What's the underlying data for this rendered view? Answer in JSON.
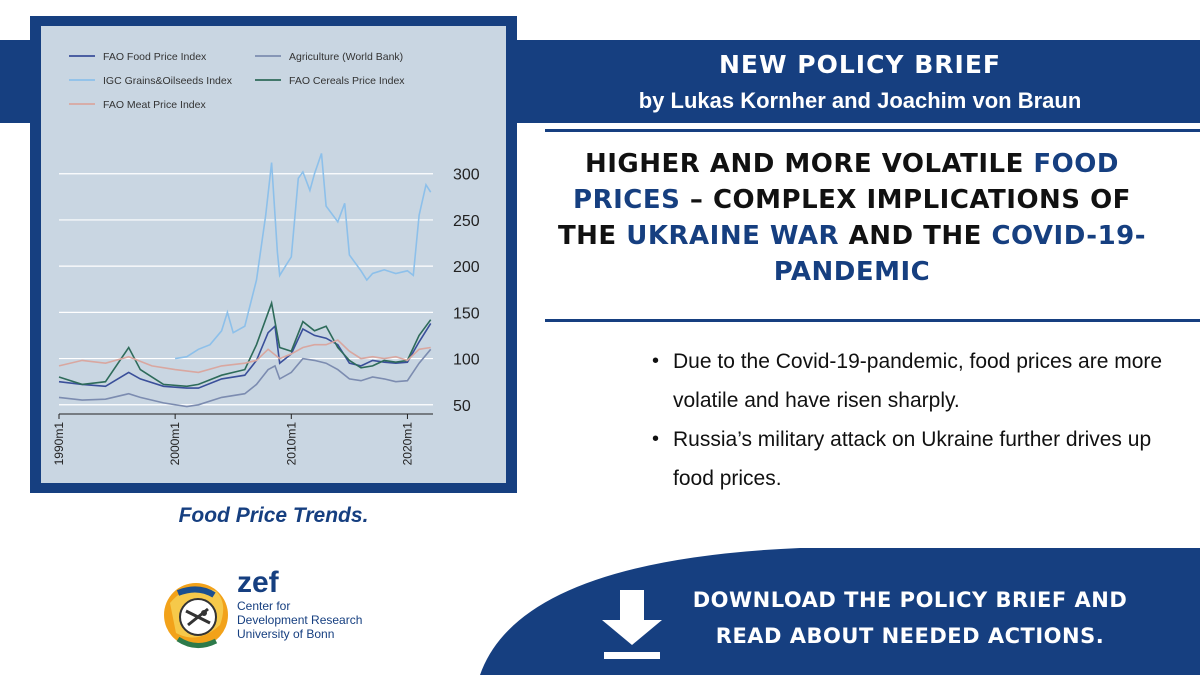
{
  "header": {
    "line1": "NEW POLICY BRIEF",
    "line2": "by Lukas Kornher and Joachim von Braun"
  },
  "title": {
    "parts": [
      "Higher and more volatile ",
      "food prices",
      " – complex implications of the ",
      "Ukraine War",
      " and the ",
      "Covid-19-pandemic"
    ]
  },
  "bullets": [
    "Due to the Covid-19-pandemic, food prices are more volatile and have risen sharply.",
    "Russia’s military attack on Ukraine further drives up food prices."
  ],
  "caption": "Food Price Trends.",
  "logo": {
    "word": "zef",
    "sub1": "Center for",
    "sub2": "Development Research",
    "sub3": "University of Bonn"
  },
  "cta": {
    "line1": "DOWNLOAD THE POLICY BRIEF AND",
    "line2": "READ ABOUT NEEDED ACTIONS.",
    "icon": "download-arrow-icon"
  },
  "colors": {
    "brand_blue": "#163f80",
    "chart_bg": "#c9d6e2",
    "title_highlight": "#163f80"
  },
  "chart_data": {
    "type": "line",
    "xlabel": "",
    "ylabel": "",
    "x_range": [
      1990,
      2022.2
    ],
    "ylim": [
      40,
      330
    ],
    "xticks": [
      {
        "value": 1990,
        "label": "1990m1"
      },
      {
        "value": 2000,
        "label": "2000m1"
      },
      {
        "value": 2010,
        "label": "2010m1"
      },
      {
        "value": 2020,
        "label": "2020m1"
      }
    ],
    "yticks": [
      50,
      100,
      150,
      200,
      250,
      300
    ],
    "grid": true,
    "legend_position": "top-left",
    "series": [
      {
        "name": "FAO Food Price Index",
        "color": "#3a4f9a",
        "points": [
          [
            1990,
            75
          ],
          [
            1992,
            72
          ],
          [
            1994,
            70
          ],
          [
            1996,
            85
          ],
          [
            1997,
            78
          ],
          [
            1999,
            70
          ],
          [
            2001,
            68
          ],
          [
            2002,
            68
          ],
          [
            2004,
            78
          ],
          [
            2006,
            82
          ],
          [
            2007,
            98
          ],
          [
            2008,
            128
          ],
          [
            2008.6,
            135
          ],
          [
            2009,
            95
          ],
          [
            2010,
            105
          ],
          [
            2011,
            132
          ],
          [
            2012,
            125
          ],
          [
            2013,
            122
          ],
          [
            2014,
            115
          ],
          [
            2015,
            95
          ],
          [
            2016,
            92
          ],
          [
            2017,
            98
          ],
          [
            2018,
            96
          ],
          [
            2019,
            95
          ],
          [
            2020,
            96
          ],
          [
            2021,
            118
          ],
          [
            2022,
            138
          ]
        ]
      },
      {
        "name": "Agriculture (World Bank)",
        "color": "#7c8cb0",
        "points": [
          [
            1990,
            58
          ],
          [
            1992,
            55
          ],
          [
            1994,
            56
          ],
          [
            1996,
            62
          ],
          [
            1997,
            58
          ],
          [
            1999,
            52
          ],
          [
            2001,
            48
          ],
          [
            2002,
            50
          ],
          [
            2004,
            58
          ],
          [
            2006,
            62
          ],
          [
            2007,
            72
          ],
          [
            2008,
            88
          ],
          [
            2008.6,
            92
          ],
          [
            2009,
            78
          ],
          [
            2010,
            85
          ],
          [
            2011,
            100
          ],
          [
            2012,
            98
          ],
          [
            2013,
            95
          ],
          [
            2014,
            88
          ],
          [
            2015,
            78
          ],
          [
            2016,
            76
          ],
          [
            2017,
            80
          ],
          [
            2018,
            78
          ],
          [
            2019,
            75
          ],
          [
            2020,
            76
          ],
          [
            2021,
            95
          ],
          [
            2022,
            110
          ]
        ]
      },
      {
        "name": "IGC Grains&Oilseeds Index",
        "color": "#8dc0ea",
        "points": [
          [
            2000,
            100
          ],
          [
            2001,
            102
          ],
          [
            2002,
            110
          ],
          [
            2003,
            115
          ],
          [
            2004,
            130
          ],
          [
            2004.5,
            150
          ],
          [
            2005,
            128
          ],
          [
            2006,
            135
          ],
          [
            2007,
            185
          ],
          [
            2007.8,
            255
          ],
          [
            2008.3,
            312
          ],
          [
            2008.8,
            215
          ],
          [
            2009,
            190
          ],
          [
            2009.5,
            200
          ],
          [
            2010,
            210
          ],
          [
            2010.6,
            295
          ],
          [
            2011,
            302
          ],
          [
            2011.6,
            282
          ],
          [
            2012,
            300
          ],
          [
            2012.6,
            322
          ],
          [
            2013,
            265
          ],
          [
            2014,
            248
          ],
          [
            2014.6,
            268
          ],
          [
            2015,
            212
          ],
          [
            2016,
            195
          ],
          [
            2016.5,
            185
          ],
          [
            2017,
            192
          ],
          [
            2018,
            196
          ],
          [
            2019,
            192
          ],
          [
            2020,
            195
          ],
          [
            2020.5,
            190
          ],
          [
            2021,
            255
          ],
          [
            2021.6,
            288
          ],
          [
            2022,
            280
          ]
        ]
      },
      {
        "name": "FAO Cereals Price Index",
        "color": "#2e6b5a",
        "points": [
          [
            1990,
            80
          ],
          [
            1992,
            72
          ],
          [
            1994,
            75
          ],
          [
            1996,
            112
          ],
          [
            1997,
            88
          ],
          [
            1999,
            72
          ],
          [
            2001,
            70
          ],
          [
            2002,
            72
          ],
          [
            2004,
            82
          ],
          [
            2006,
            88
          ],
          [
            2007,
            115
          ],
          [
            2008.3,
            160
          ],
          [
            2009,
            112
          ],
          [
            2010,
            108
          ],
          [
            2011,
            140
          ],
          [
            2012,
            130
          ],
          [
            2013,
            135
          ],
          [
            2014,
            112
          ],
          [
            2015,
            98
          ],
          [
            2016,
            90
          ],
          [
            2017,
            92
          ],
          [
            2018,
            98
          ],
          [
            2019,
            96
          ],
          [
            2020,
            98
          ],
          [
            2021,
            125
          ],
          [
            2022,
            142
          ]
        ]
      },
      {
        "name": "FAO Meat Price Index",
        "color": "#d9a7a0",
        "points": [
          [
            1990,
            92
          ],
          [
            1992,
            98
          ],
          [
            1994,
            95
          ],
          [
            1996,
            102
          ],
          [
            1998,
            92
          ],
          [
            2000,
            88
          ],
          [
            2002,
            85
          ],
          [
            2004,
            92
          ],
          [
            2006,
            95
          ],
          [
            2007,
            98
          ],
          [
            2008,
            110
          ],
          [
            2009,
            100
          ],
          [
            2010,
            105
          ],
          [
            2011,
            112
          ],
          [
            2012,
            115
          ],
          [
            2013,
            115
          ],
          [
            2014,
            120
          ],
          [
            2015,
            108
          ],
          [
            2016,
            100
          ],
          [
            2017,
            102
          ],
          [
            2018,
            100
          ],
          [
            2019,
            102
          ],
          [
            2020,
            98
          ],
          [
            2021,
            110
          ],
          [
            2022,
            112
          ]
        ]
      }
    ]
  }
}
